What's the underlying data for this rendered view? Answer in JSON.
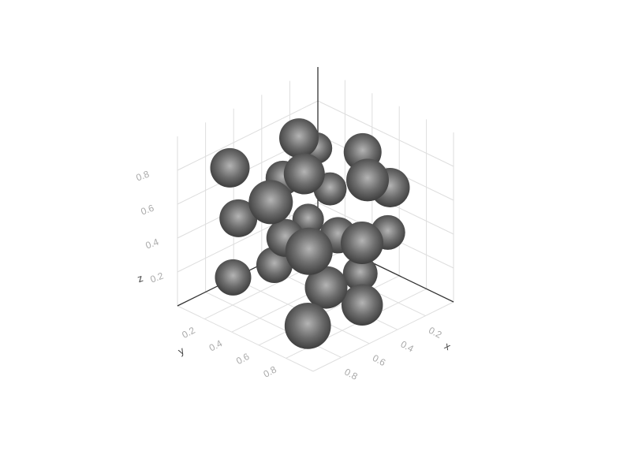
{
  "chart_data": {
    "type": "scatter3d",
    "x": [
      0.56,
      0.3,
      0.81,
      0.29,
      0.5,
      0.58,
      0.29,
      0.39,
      0.23,
      0.78,
      0.74,
      0.33,
      0.57,
      0.34,
      0.12,
      0.41,
      0.72,
      0.57,
      0.22,
      0.72,
      0.54,
      0.38,
      0.7
    ],
    "y": [
      0.44,
      0.3,
      0.19,
      0.63,
      0.26,
      0.5,
      0.39,
      0.77,
      0.77,
      0.46,
      0.18,
      0.27,
      0.35,
      0.5,
      0.64,
      0.75,
      0.68,
      0.27,
      0.54,
      0.12,
      0.62,
      0.72,
      0.65
    ],
    "z": [
      0.98,
      0.76,
      0.81,
      0.86,
      0.65,
      0.8,
      0.55,
      0.79,
      0.68,
      0.7,
      0.48,
      0.34,
      0.36,
      0.34,
      0.32,
      0.42,
      0.47,
      0.17,
      0.08,
      0.1,
      0.16,
      0.03,
      0.01
    ],
    "color": "#6e6e6e",
    "xlim": [
      0,
      1
    ],
    "ylim": [
      0,
      1
    ],
    "zlim": [
      0,
      1
    ],
    "xticks": [
      0.2,
      0.4,
      0.6,
      0.8
    ],
    "yticks": [
      0.2,
      0.4,
      0.6,
      0.8
    ],
    "zticks": [
      0.2,
      0.4,
      0.6,
      0.8
    ],
    "xlabel": "x",
    "ylabel": "y",
    "zlabel": "z",
    "grid": true
  }
}
